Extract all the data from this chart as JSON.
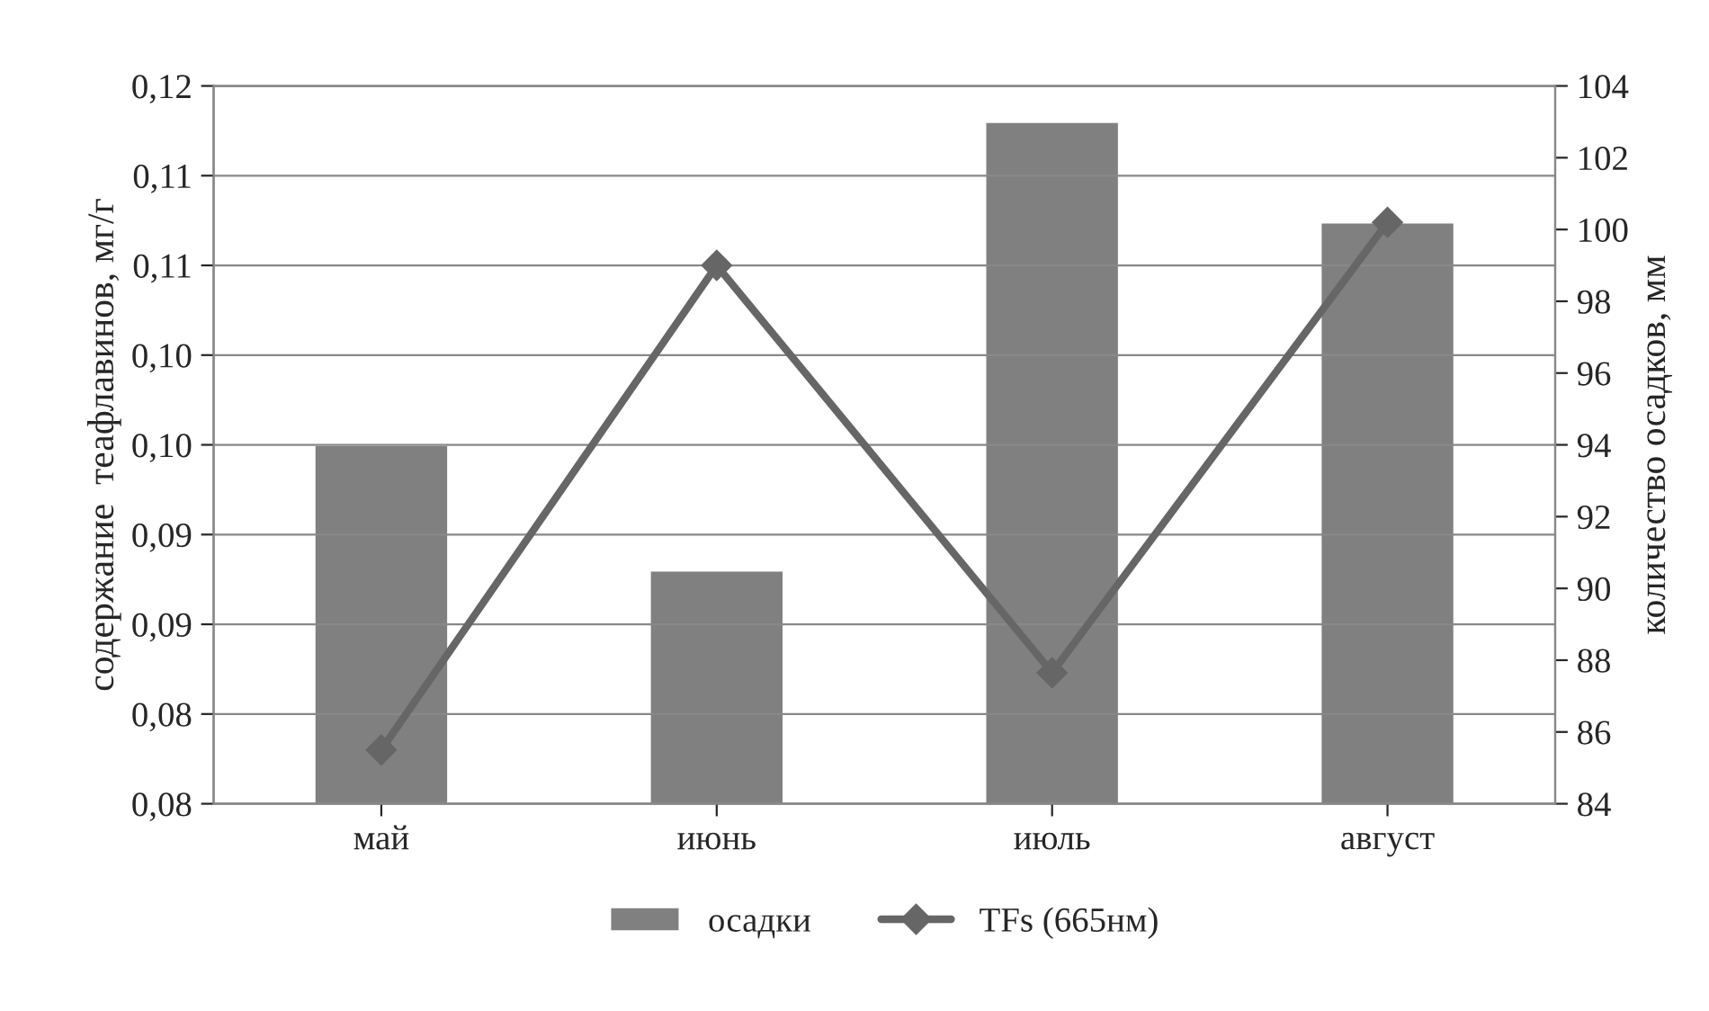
{
  "chart_data": {
    "type": "bar",
    "categories": [
      "май",
      "июнь",
      "июль",
      "август"
    ],
    "series": [
      {
        "name": "осадки",
        "axis": "y2",
        "color": "#808080",
        "values": [
          94,
          90.5,
          103,
          100.2
        ]
      },
      {
        "name": "TFs (665нм)",
        "type": "line",
        "color": "#666666",
        "values": [
          0.083,
          0.11,
          0.0873,
          0.1124
        ],
        "marker": "diamond",
        "line_style": "solid"
      }
    ],
    "ylabel": "содержание  теафлавинов, мг/г",
    "y2label": "количество осадков, мм",
    "ylim": [
      0.08,
      0.12
    ],
    "yticks": [
      {
        "value": 0.08,
        "label": "0,08"
      },
      {
        "value": 0.085,
        "label": "0,08"
      },
      {
        "value": 0.09,
        "label": "0,09"
      },
      {
        "value": 0.095,
        "label": "0,09"
      },
      {
        "value": 0.1,
        "label": "0,10"
      },
      {
        "value": 0.105,
        "label": "0,10"
      },
      {
        "value": 0.11,
        "label": "0,11"
      },
      {
        "value": 0.115,
        "label": "0,11"
      },
      {
        "value": 0.12,
        "label": "0,12"
      }
    ],
    "y2lim": [
      84,
      104
    ],
    "y2ticks": [
      84,
      86,
      88,
      90,
      92,
      94,
      96,
      98,
      100,
      102,
      104
    ],
    "grid": "y",
    "legend": "bottom"
  }
}
